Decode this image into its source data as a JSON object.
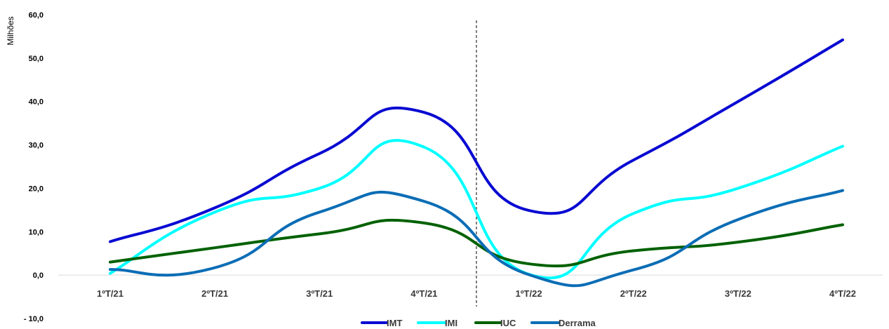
{
  "chart_data": {
    "type": "line",
    "ylabel": "Milhões",
    "categories": [
      "1ºT/21",
      "2ºT/21",
      "3ºT/21",
      "4ºT/21",
      "1ºT/22",
      "2ºT/22",
      "3ºT/22",
      "4ºT/22"
    ],
    "yticks": [
      "60,0",
      "50,0",
      "40,0",
      "30,0",
      "20,0",
      "10,0",
      "0,0",
      "- 10,0"
    ],
    "ylim": [
      -10,
      60
    ],
    "series": [
      {
        "name": "IMT",
        "color": "#0a0ad2",
        "values": [
          7.7,
          15.5,
          28.0,
          37.5,
          14.9,
          26.5,
          40.0,
          54.2
        ]
      },
      {
        "name": "IMI",
        "color": "#00ffff",
        "values": [
          0.4,
          14.5,
          20.0,
          29.5,
          0.2,
          14.2,
          20.0,
          29.7
        ]
      },
      {
        "name": "IUC",
        "color": "#006100",
        "values": [
          3.0,
          6.3,
          9.5,
          12.0,
          2.6,
          5.6,
          7.6,
          11.6
        ]
      },
      {
        "name": "Derrama",
        "color": "#0b6db5",
        "values": [
          1.3,
          1.7,
          14.5,
          17.0,
          0.1,
          1.2,
          12.8,
          19.5
        ]
      }
    ],
    "divider_between": [
      "4ºT/21",
      "1ºT/22"
    ],
    "legend_position": "bottom"
  }
}
